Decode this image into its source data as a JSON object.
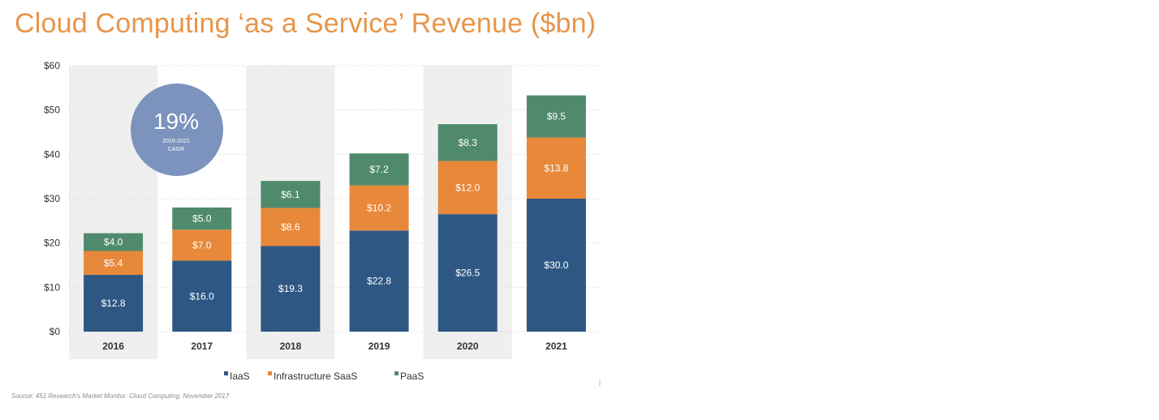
{
  "chart_data": {
    "type": "bar",
    "stacked": true,
    "title": "Cloud Computing ‘as a Service’ Revenue ($bn)",
    "categories": [
      "2016",
      "2017",
      "2018",
      "2019",
      "2020",
      "2021"
    ],
    "series": [
      {
        "name": "IaaS",
        "color": "#2E5883",
        "values": [
          12.8,
          16.0,
          19.3,
          22.8,
          26.5,
          30.0
        ],
        "labels": [
          "$12.8",
          "$16.0",
          "$19.3",
          "$22.8",
          "$26.5",
          "$30.0"
        ]
      },
      {
        "name": "Infrastructure SaaS",
        "color": "#E8883A",
        "values": [
          5.4,
          7.0,
          8.6,
          10.2,
          12.0,
          13.8
        ],
        "labels": [
          "$5.4",
          "$7.0",
          "$8.6",
          "$10.2",
          "$12.0",
          "$13.8"
        ]
      },
      {
        "name": "PaaS",
        "color": "#4F8A6C",
        "values": [
          4.0,
          5.0,
          6.1,
          7.2,
          8.3,
          9.5
        ],
        "labels": [
          "$4.0",
          "$5.0",
          "$6.1",
          "$7.2",
          "$8.3",
          "$9.5"
        ]
      }
    ],
    "ylim": [
      0,
      60
    ],
    "yticks": [
      0,
      10,
      20,
      30,
      40,
      50,
      60
    ],
    "ytick_labels": [
      "$0",
      "$10",
      "$20",
      "$30",
      "$40",
      "$50",
      "$60"
    ],
    "grid": true,
    "legend_position": "bottom",
    "annotation": {
      "value": "19%",
      "subtitle_line1": "2016-2021",
      "subtitle_line2": "CAGR",
      "color": "#7B93BD"
    }
  },
  "source": "Source: 451 Research's Market Monitor: Cloud Computing, November 2017"
}
